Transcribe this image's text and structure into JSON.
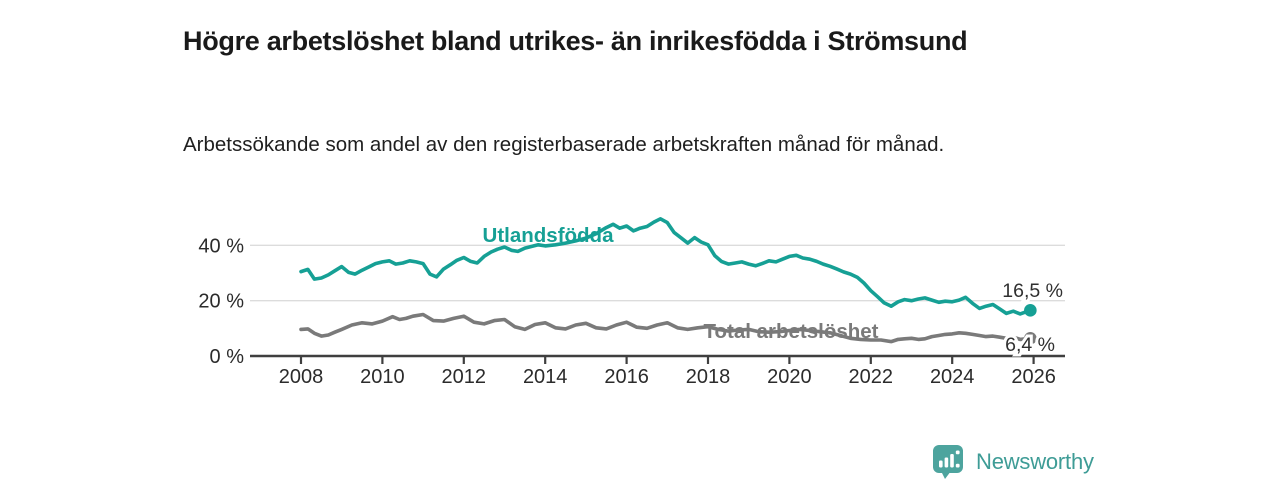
{
  "header": {
    "title": "Högre arbetslöshet bland utrikes- än inrikesfödda i Strömsund",
    "subtitle": "Arbetssökande som andel av den registerbaserade arbetskraften månad för månad."
  },
  "footer": {
    "brand": "Newsworthy",
    "brand_color": "#3E9C96",
    "logo_icon": "bar-chart-speech-bubble-icon",
    "logo_color": "#4DA49E"
  },
  "chart_data": {
    "type": "line",
    "unit": "%",
    "title": "Högre arbetslöshet bland utrikes- än inrikesfödda i Strömsund",
    "xlabel": "",
    "ylabel": "",
    "x_ticks": [
      2008,
      2010,
      2012,
      2014,
      2016,
      2018,
      2020,
      2022,
      2024,
      2026
    ],
    "y_ticks": [
      0,
      20,
      40
    ],
    "y_tick_suffix": " %",
    "ylim": [
      0,
      53
    ],
    "xlim": [
      2006.8,
      2026.8
    ],
    "grid": "horizontal",
    "legend_position": "inline-labels",
    "series": [
      {
        "name": "Utlandsfödda",
        "color": "#16A095",
        "end_value": 16.5,
        "end_label": "16,5 %",
        "points": [
          [
            2008.0,
            30.5
          ],
          [
            2008.17,
            31.3
          ],
          [
            2008.33,
            27.8
          ],
          [
            2008.5,
            28.2
          ],
          [
            2008.67,
            29.3
          ],
          [
            2008.83,
            30.8
          ],
          [
            2009.0,
            32.3
          ],
          [
            2009.17,
            30.2
          ],
          [
            2009.33,
            29.6
          ],
          [
            2009.5,
            31.0
          ],
          [
            2009.67,
            32.2
          ],
          [
            2009.83,
            33.4
          ],
          [
            2010.0,
            34.0
          ],
          [
            2010.17,
            34.4
          ],
          [
            2010.33,
            33.2
          ],
          [
            2010.5,
            33.6
          ],
          [
            2010.67,
            34.4
          ],
          [
            2010.83,
            34.0
          ],
          [
            2011.0,
            33.4
          ],
          [
            2011.17,
            29.6
          ],
          [
            2011.33,
            28.6
          ],
          [
            2011.5,
            31.4
          ],
          [
            2011.67,
            33.0
          ],
          [
            2011.83,
            34.6
          ],
          [
            2012.0,
            35.6
          ],
          [
            2012.17,
            34.2
          ],
          [
            2012.33,
            33.6
          ],
          [
            2012.5,
            36.0
          ],
          [
            2012.67,
            37.6
          ],
          [
            2012.83,
            38.6
          ],
          [
            2013.0,
            39.4
          ],
          [
            2013.17,
            38.2
          ],
          [
            2013.33,
            37.8
          ],
          [
            2013.5,
            39.0
          ],
          [
            2013.67,
            39.6
          ],
          [
            2013.83,
            40.2
          ],
          [
            2014.0,
            39.8
          ],
          [
            2014.25,
            40.2
          ],
          [
            2014.5,
            40.8
          ],
          [
            2014.75,
            41.6
          ],
          [
            2015.0,
            42.6
          ],
          [
            2015.25,
            44.2
          ],
          [
            2015.5,
            46.4
          ],
          [
            2015.67,
            47.6
          ],
          [
            2015.83,
            46.2
          ],
          [
            2016.0,
            47.0
          ],
          [
            2016.17,
            45.2
          ],
          [
            2016.33,
            46.2
          ],
          [
            2016.5,
            46.8
          ],
          [
            2016.67,
            48.4
          ],
          [
            2016.83,
            49.6
          ],
          [
            2017.0,
            48.2
          ],
          [
            2017.17,
            44.6
          ],
          [
            2017.33,
            42.8
          ],
          [
            2017.5,
            40.8
          ],
          [
            2017.67,
            42.8
          ],
          [
            2017.83,
            41.2
          ],
          [
            2018.0,
            40.2
          ],
          [
            2018.17,
            36.2
          ],
          [
            2018.33,
            34.2
          ],
          [
            2018.5,
            33.2
          ],
          [
            2018.67,
            33.6
          ],
          [
            2018.83,
            34.0
          ],
          [
            2019.0,
            33.2
          ],
          [
            2019.17,
            32.6
          ],
          [
            2019.33,
            33.4
          ],
          [
            2019.5,
            34.4
          ],
          [
            2019.67,
            34.0
          ],
          [
            2019.83,
            35.0
          ],
          [
            2020.0,
            36.0
          ],
          [
            2020.17,
            36.4
          ],
          [
            2020.33,
            35.4
          ],
          [
            2020.5,
            35.0
          ],
          [
            2020.67,
            34.2
          ],
          [
            2020.83,
            33.2
          ],
          [
            2021.0,
            32.4
          ],
          [
            2021.17,
            31.4
          ],
          [
            2021.33,
            30.4
          ],
          [
            2021.5,
            29.6
          ],
          [
            2021.67,
            28.4
          ],
          [
            2021.83,
            26.4
          ],
          [
            2022.0,
            23.6
          ],
          [
            2022.17,
            21.4
          ],
          [
            2022.33,
            19.2
          ],
          [
            2022.5,
            18.0
          ],
          [
            2022.67,
            19.6
          ],
          [
            2022.83,
            20.4
          ],
          [
            2023.0,
            20.0
          ],
          [
            2023.17,
            20.6
          ],
          [
            2023.33,
            21.0
          ],
          [
            2023.5,
            20.2
          ],
          [
            2023.67,
            19.4
          ],
          [
            2023.83,
            19.8
          ],
          [
            2024.0,
            19.6
          ],
          [
            2024.17,
            20.2
          ],
          [
            2024.33,
            21.2
          ],
          [
            2024.5,
            19.0
          ],
          [
            2024.67,
            17.2
          ],
          [
            2024.83,
            18.0
          ],
          [
            2025.0,
            18.6
          ],
          [
            2025.17,
            17.0
          ],
          [
            2025.33,
            15.4
          ],
          [
            2025.5,
            16.2
          ],
          [
            2025.67,
            15.2
          ],
          [
            2025.92,
            16.5
          ]
        ]
      },
      {
        "name": "Total arbetslöshet",
        "color": "#7A7A7A",
        "end_value": 6.4,
        "end_label": "6,4 %",
        "points": [
          [
            2008.0,
            9.6
          ],
          [
            2008.17,
            9.8
          ],
          [
            2008.33,
            8.2
          ],
          [
            2008.5,
            7.2
          ],
          [
            2008.67,
            7.6
          ],
          [
            2008.83,
            8.6
          ],
          [
            2009.0,
            9.6
          ],
          [
            2009.25,
            11.2
          ],
          [
            2009.5,
            12.0
          ],
          [
            2009.75,
            11.6
          ],
          [
            2010.0,
            12.6
          ],
          [
            2010.25,
            14.2
          ],
          [
            2010.42,
            13.2
          ],
          [
            2010.58,
            13.6
          ],
          [
            2010.75,
            14.4
          ],
          [
            2011.0,
            15.0
          ],
          [
            2011.25,
            12.8
          ],
          [
            2011.5,
            12.6
          ],
          [
            2011.75,
            13.6
          ],
          [
            2012.0,
            14.4
          ],
          [
            2012.25,
            12.2
          ],
          [
            2012.5,
            11.6
          ],
          [
            2012.75,
            12.8
          ],
          [
            2013.0,
            13.2
          ],
          [
            2013.25,
            10.6
          ],
          [
            2013.5,
            9.6
          ],
          [
            2013.75,
            11.4
          ],
          [
            2014.0,
            12.0
          ],
          [
            2014.25,
            10.2
          ],
          [
            2014.5,
            9.8
          ],
          [
            2014.75,
            11.2
          ],
          [
            2015.0,
            11.8
          ],
          [
            2015.25,
            10.2
          ],
          [
            2015.5,
            9.8
          ],
          [
            2015.75,
            11.2
          ],
          [
            2016.0,
            12.2
          ],
          [
            2016.25,
            10.4
          ],
          [
            2016.5,
            10.0
          ],
          [
            2016.75,
            11.2
          ],
          [
            2017.0,
            12.0
          ],
          [
            2017.25,
            10.2
          ],
          [
            2017.5,
            9.6
          ],
          [
            2017.75,
            10.2
          ],
          [
            2018.0,
            10.6
          ],
          [
            2018.25,
            9.6
          ],
          [
            2018.5,
            9.0
          ],
          [
            2018.75,
            9.4
          ],
          [
            2019.0,
            9.6
          ],
          [
            2019.25,
            8.8
          ],
          [
            2019.5,
            8.6
          ],
          [
            2019.75,
            8.8
          ],
          [
            2020.0,
            9.2
          ],
          [
            2020.25,
            9.6
          ],
          [
            2020.5,
            9.2
          ],
          [
            2020.75,
            8.8
          ],
          [
            2021.0,
            8.4
          ],
          [
            2021.25,
            7.4
          ],
          [
            2021.5,
            6.4
          ],
          [
            2021.75,
            6.0
          ],
          [
            2022.0,
            5.8
          ],
          [
            2022.25,
            5.8
          ],
          [
            2022.5,
            5.2
          ],
          [
            2022.67,
            6.0
          ],
          [
            2022.83,
            6.2
          ],
          [
            2023.0,
            6.4
          ],
          [
            2023.17,
            6.0
          ],
          [
            2023.33,
            6.2
          ],
          [
            2023.5,
            7.0
          ],
          [
            2023.67,
            7.4
          ],
          [
            2023.83,
            7.8
          ],
          [
            2024.0,
            8.0
          ],
          [
            2024.17,
            8.4
          ],
          [
            2024.33,
            8.2
          ],
          [
            2024.5,
            7.8
          ],
          [
            2024.67,
            7.4
          ],
          [
            2024.83,
            7.0
          ],
          [
            2025.0,
            7.2
          ],
          [
            2025.17,
            6.8
          ],
          [
            2025.33,
            6.4
          ],
          [
            2025.5,
            6.8
          ],
          [
            2025.67,
            6.0
          ],
          [
            2025.92,
            6.4
          ]
        ]
      }
    ]
  }
}
